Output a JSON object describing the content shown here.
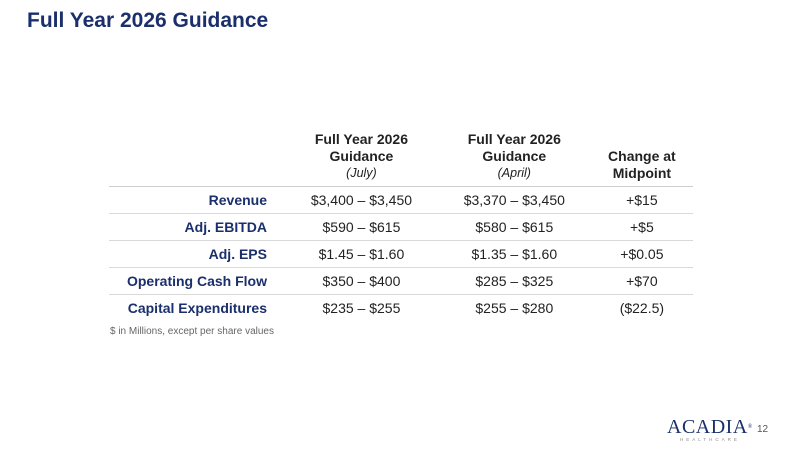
{
  "title": "Full Year 2026 Guidance",
  "table": {
    "headers": [
      {
        "line1": "Full Year 2026",
        "line2": "Guidance",
        "sub": "(July)"
      },
      {
        "line1": "Full Year 2026",
        "line2": "Guidance",
        "sub": "(April)"
      },
      {
        "line1": "Change at",
        "line2": "Midpoint",
        "sub": ""
      }
    ],
    "rows": [
      {
        "label": "Revenue",
        "july": "$3,400 – $3,450",
        "april": "$3,370 – $3,450",
        "change": "+$15"
      },
      {
        "label": "Adj. EBITDA",
        "july": "$590 – $615",
        "april": "$580 – $615",
        "change": "+$5"
      },
      {
        "label": "Adj. EPS",
        "july": "$1.45 – $1.60",
        "april": "$1.35 – $1.60",
        "change": "+$0.05"
      },
      {
        "label": "Operating Cash Flow",
        "july": "$350 – $400",
        "april": "$285 – $325",
        "change": "+$70"
      },
      {
        "label": "Capital Expenditures",
        "july": "$235 – $255",
        "april": "$255 – $280",
        "change": "($22.5)"
      }
    ]
  },
  "footnote": "$ in Millions, except per share values",
  "logo": {
    "name": "ACADIA",
    "mark": "®",
    "tagline": "HEALTHCARE"
  },
  "page_number": "12",
  "colors": {
    "brand_navy": "#1a2f6b",
    "text": "#222222",
    "rule": "#d9d9d9"
  }
}
